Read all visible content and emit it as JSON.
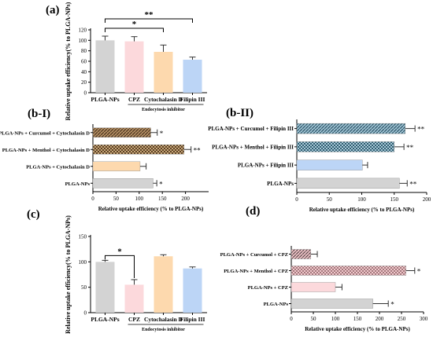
{
  "panel_labels": {
    "a": "(a)",
    "b1": "(b-I)",
    "b2": "(b-II)",
    "c": "(c)",
    "d": "(d)"
  },
  "colors": {
    "grey": "#d3d3d3",
    "pink": "#fcd9dc",
    "orange": "#fdd9ae",
    "blue": "#bcd5f6",
    "brown": "#8a6a48",
    "teal": "#3d6f80"
  },
  "chart_data": [
    {
      "id": "a",
      "type": "bar",
      "orientation": "vertical",
      "categories": [
        "PLGA-NPs",
        "CPZ",
        "Cytochalasin D",
        "Filipin III"
      ],
      "values": [
        100,
        98,
        78,
        63
      ],
      "errors": [
        8,
        9,
        13,
        5
      ],
      "colors": [
        "#d3d3d3",
        "#fcd9dc",
        "#fdd9ae",
        "#bcd5f6"
      ],
      "ylabel": "Relative uptake efficiency(% to PLGA-NPs)",
      "xlabel": "Endocytosis inhibitor",
      "ylim": [
        0,
        120
      ],
      "yticks": [
        0,
        20,
        40,
        60,
        80,
        100,
        120
      ],
      "significance": [
        {
          "from": 0,
          "to": 2,
          "label": "*"
        },
        {
          "from": 0,
          "to": 3,
          "label": "**"
        }
      ]
    },
    {
      "id": "b1",
      "type": "bar",
      "orientation": "horizontal",
      "categories": [
        "PLGA-NPs + Curcumol + Cytochalasin D",
        "PLGA-NPs + Menthol + Cytochalasin D",
        "PLGA-NPs + Cytochalasin D",
        "PLGA-NPs"
      ],
      "values": [
        125,
        197,
        102,
        130
      ],
      "errors": [
        14,
        15,
        13,
        8
      ],
      "colors": [
        "#8a6a48",
        "#8a6a48",
        "#fdd9ae",
        "#d3d3d3"
      ],
      "patterns": [
        "hatch",
        "checker",
        "none",
        "none"
      ],
      "stars": [
        "*",
        "**",
        "",
        "*"
      ],
      "xlabel": "Relative uptake efficiency (% to PLGA-NPs)",
      "xlim": [
        0,
        250
      ],
      "xticks": [
        0,
        50,
        100,
        150,
        200
      ]
    },
    {
      "id": "b2",
      "type": "bar",
      "orientation": "horizontal",
      "categories": [
        "PLGA-NPs + Curcumol + Filipin III",
        "PLGA-NPs + Menthol + Filipin III",
        "PLGA-NPs + Filipin III",
        "PLGA-NPs"
      ],
      "values": [
        167,
        150,
        101,
        158
      ],
      "errors": [
        15,
        15,
        8,
        12
      ],
      "colors": [
        "#3d6f80",
        "#3d6f80",
        "#bcd5f6",
        "#d3d3d3"
      ],
      "patterns": [
        "hatch",
        "checker",
        "none",
        "none"
      ],
      "stars": [
        "**",
        "**",
        "",
        "**"
      ],
      "xlabel": "Relative uptake efficiency (% to PLGA-NPs)",
      "xlim": [
        0,
        200
      ],
      "xticks": [
        0,
        50,
        100,
        150,
        200
      ]
    },
    {
      "id": "c",
      "type": "bar",
      "orientation": "vertical",
      "categories": [
        "PLGA-NPs",
        "CPZ",
        "Cytochalasin D",
        "Filipin III"
      ],
      "values": [
        100,
        55,
        111,
        87
      ],
      "errors": [
        3,
        10,
        3,
        3
      ],
      "colors": [
        "#d3d3d3",
        "#fcd9dc",
        "#fdd9ae",
        "#bcd5f6"
      ],
      "ylabel": "Relative uptake efficiency(% to PLGA-NPs)",
      "xlabel": "Endocytosis inhibitor",
      "ylim": [
        0,
        150
      ],
      "yticks": [
        0,
        50,
        100,
        150
      ],
      "significance": [
        {
          "from": 0,
          "to": 1,
          "label": "*"
        }
      ]
    },
    {
      "id": "d",
      "type": "bar",
      "orientation": "horizontal",
      "categories": [
        "PLGA-NPs + Curcumol + CPZ",
        "PLGA-NPs + Menthol + CPZ",
        "PLGA-NPs + CPZ",
        "PLGA-NPs"
      ],
      "values": [
        44,
        260,
        100,
        185
      ],
      "errors": [
        15,
        20,
        15,
        35
      ],
      "colors": [
        "#e3a3aa",
        "#e3a3aa",
        "#fcd9dc",
        "#d3d3d3"
      ],
      "patterns": [
        "hatch",
        "checker",
        "none",
        "none"
      ],
      "stars": [
        "",
        "*",
        "",
        "*"
      ],
      "xlabel": "Relative uptake efficiency (% to PLGA-NPs)",
      "xlim": [
        0,
        300
      ],
      "xticks": [
        0,
        50,
        100,
        150,
        200,
        250,
        300
      ]
    }
  ]
}
